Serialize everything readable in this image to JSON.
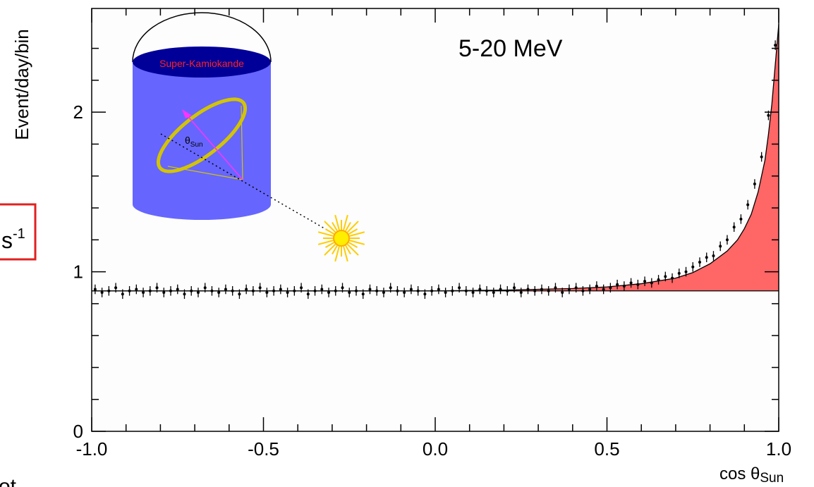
{
  "chart_data": {
    "type": "scatter",
    "annotation": "5-20 MeV",
    "ylabel": "Event/day/bin",
    "xlabel": "cos θ",
    "xlabel_sub": "Sun",
    "xlim": [
      -1,
      1
    ],
    "ylim": [
      0,
      2.65
    ],
    "xticks": [
      {
        "value": -1,
        "label": "-1.0"
      },
      {
        "value": -0.5,
        "label": "-0.5"
      },
      {
        "value": 0,
        "label": "0.0"
      },
      {
        "value": 0.5,
        "label": "0.5"
      },
      {
        "value": 1,
        "label": "1.0"
      }
    ],
    "xminorticks": [
      -0.9,
      -0.8,
      -0.7,
      -0.6,
      -0.4,
      -0.3,
      -0.2,
      -0.1,
      0.1,
      0.2,
      0.3,
      0.4,
      0.6,
      0.7,
      0.8,
      0.9
    ],
    "yticks": [
      0,
      1,
      2
    ],
    "yminorticks": [
      0.2,
      0.4,
      0.6,
      0.8,
      1.2,
      1.4,
      1.6,
      1.8,
      2.2,
      2.4
    ],
    "points": {
      "color": "#000000",
      "yerr": 0.03,
      "x": [
        -0.99,
        -0.97,
        -0.95,
        -0.93,
        -0.91,
        -0.89,
        -0.87,
        -0.85,
        -0.83,
        -0.81,
        -0.79,
        -0.77,
        -0.75,
        -0.73,
        -0.71,
        -0.69,
        -0.67,
        -0.65,
        -0.63,
        -0.61,
        -0.59,
        -0.57,
        -0.55,
        -0.53,
        -0.51,
        -0.49,
        -0.47,
        -0.45,
        -0.43,
        -0.41,
        -0.39,
        -0.37,
        -0.35,
        -0.33,
        -0.31,
        -0.29,
        -0.27,
        -0.25,
        -0.23,
        -0.21,
        -0.19,
        -0.17,
        -0.15,
        -0.13,
        -0.11,
        -0.09,
        -0.07,
        -0.05,
        -0.03,
        -0.01,
        0.01,
        0.03,
        0.05,
        0.07,
        0.09,
        0.11,
        0.13,
        0.15,
        0.17,
        0.19,
        0.21,
        0.23,
        0.25,
        0.27,
        0.29,
        0.31,
        0.33,
        0.35,
        0.37,
        0.39,
        0.41,
        0.43,
        0.45,
        0.47,
        0.49,
        0.51,
        0.53,
        0.55,
        0.57,
        0.59,
        0.61,
        0.63,
        0.65,
        0.67,
        0.69,
        0.71,
        0.73,
        0.75,
        0.77,
        0.79,
        0.81,
        0.83,
        0.85,
        0.87,
        0.89,
        0.91,
        0.93,
        0.95,
        0.97,
        0.99
      ],
      "values": [
        0.89,
        0.87,
        0.88,
        0.9,
        0.86,
        0.88,
        0.89,
        0.87,
        0.88,
        0.9,
        0.87,
        0.88,
        0.89,
        0.86,
        0.88,
        0.87,
        0.9,
        0.88,
        0.87,
        0.89,
        0.88,
        0.86,
        0.89,
        0.88,
        0.9,
        0.87,
        0.88,
        0.89,
        0.87,
        0.88,
        0.9,
        0.86,
        0.88,
        0.89,
        0.87,
        0.88,
        0.9,
        0.87,
        0.88,
        0.86,
        0.89,
        0.88,
        0.87,
        0.9,
        0.88,
        0.87,
        0.89,
        0.88,
        0.86,
        0.88,
        0.89,
        0.87,
        0.88,
        0.9,
        0.88,
        0.87,
        0.89,
        0.88,
        0.87,
        0.89,
        0.88,
        0.9,
        0.87,
        0.89,
        0.88,
        0.89,
        0.88,
        0.9,
        0.87,
        0.89,
        0.9,
        0.88,
        0.89,
        0.91,
        0.89,
        0.9,
        0.92,
        0.91,
        0.93,
        0.92,
        0.94,
        0.93,
        0.95,
        0.97,
        0.96,
        0.99,
        1.0,
        1.03,
        1.06,
        1.09,
        1.1,
        1.16,
        1.2,
        1.28,
        1.33,
        1.42,
        1.55,
        1.72,
        1.98,
        2.42
      ]
    },
    "fit": {
      "color": "#000000",
      "fill": "#ff6666",
      "baseline": 0.88,
      "x": [
        -1,
        0,
        0.2,
        0.4,
        0.5,
        0.6,
        0.7,
        0.75,
        0.8,
        0.85,
        0.88,
        0.9,
        0.92,
        0.94,
        0.96,
        0.97,
        0.98,
        0.99,
        1.0
      ],
      "values": [
        0.88,
        0.88,
        0.885,
        0.895,
        0.905,
        0.925,
        0.96,
        0.995,
        1.05,
        1.13,
        1.2,
        1.27,
        1.36,
        1.5,
        1.7,
        1.86,
        2.05,
        2.3,
        2.55
      ]
    },
    "inset": {
      "label": "Super-Kamiokande",
      "angle": "θ",
      "angle_sub": "Sun"
    },
    "margin_texts": {
      "unit": "s",
      "unit_sup": "-1",
      "fragment": "ot"
    }
  }
}
